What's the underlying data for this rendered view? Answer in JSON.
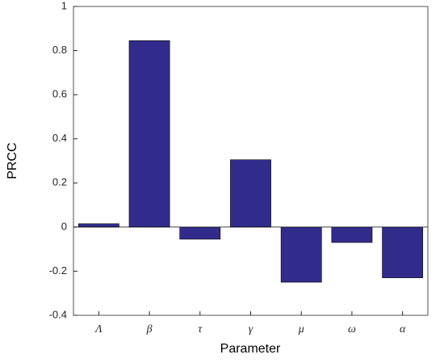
{
  "chart_data": {
    "type": "bar",
    "xlabel": "Parameter",
    "ylabel": "PRCC",
    "categories": [
      "Λ",
      "β",
      "τ",
      "γ",
      "μ",
      "ω",
      "α"
    ],
    "values": [
      0.015,
      0.845,
      -0.055,
      0.305,
      -0.25,
      -0.07,
      -0.23
    ],
    "color": "#312c8c",
    "ylim": [
      -0.4,
      1
    ],
    "yticks": [
      -0.4,
      -0.2,
      0,
      0.2,
      0.4,
      0.6,
      0.8,
      1
    ],
    "grid": false
  }
}
